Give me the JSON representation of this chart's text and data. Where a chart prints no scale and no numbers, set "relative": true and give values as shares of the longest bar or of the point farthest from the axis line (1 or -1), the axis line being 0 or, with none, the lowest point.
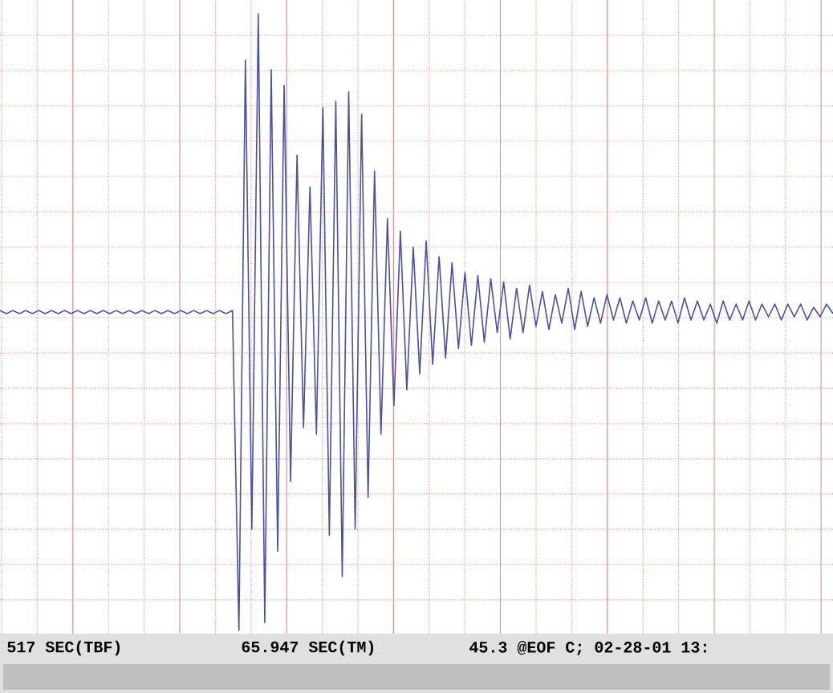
{
  "chart_data": {
    "type": "line",
    "relative": true,
    "grid": true,
    "tick_labels": false,
    "color": "#4a4fa8",
    "categories": [
      null,
      null,
      null,
      null,
      null,
      null,
      null,
      null,
      null,
      null,
      null,
      null,
      null,
      null,
      null,
      null,
      null,
      null,
      null,
      null,
      null,
      null,
      null,
      null,
      null,
      null,
      null,
      null,
      null,
      null,
      null,
      null,
      null,
      null,
      null,
      null,
      null,
      null,
      null,
      null,
      null,
      null,
      null,
      null,
      null,
      null,
      null,
      null,
      null,
      null,
      null,
      null,
      null,
      null,
      null,
      null,
      null,
      null,
      null,
      null,
      null,
      null,
      null,
      null,
      null,
      null,
      null,
      null,
      null,
      null,
      null,
      null,
      null,
      null,
      null,
      null,
      null,
      null,
      null,
      null,
      null,
      null,
      null,
      null,
      null,
      null,
      null,
      null,
      null,
      null,
      null,
      null,
      null,
      null,
      null,
      null,
      null,
      null,
      null,
      null,
      null,
      null,
      null,
      null,
      null,
      null,
      null,
      null,
      null,
      null,
      null,
      null,
      null,
      null,
      null,
      null,
      null,
      null,
      null,
      null,
      null,
      null,
      null,
      null,
      null,
      null,
      null,
      null,
      null,
      null
    ],
    "values": [
      0.01,
      0.0,
      0.01,
      0.0,
      0.01,
      0.0,
      0.01,
      0.0,
      0.01,
      0.0,
      0.01,
      0.0,
      0.01,
      0.0,
      0.01,
      0.0,
      0.01,
      0.0,
      0.01,
      0.0,
      0.01,
      0.0,
      0.01,
      0.0,
      0.01,
      0.0,
      0.01,
      0.0,
      0.01,
      0.0,
      0.01,
      0.0,
      0.01,
      0.0,
      0.01,
      0.0,
      0.01,
      -1.0,
      0.8,
      -0.68,
      0.946,
      -0.975,
      0.77,
      -0.75,
      0.72,
      -0.53,
      0.5,
      -0.36,
      0.4,
      -0.38,
      0.65,
      -0.7,
      0.67,
      -0.83,
      0.7,
      -0.68,
      0.63,
      -0.58,
      0.45,
      -0.38,
      0.3,
      -0.29,
      0.26,
      -0.24,
      0.21,
      -0.19,
      0.23,
      -0.16,
      0.18,
      -0.14,
      0.16,
      -0.11,
      0.13,
      -0.1,
      0.12,
      -0.09,
      0.11,
      -0.06,
      0.1,
      -0.08,
      0.08,
      -0.06,
      0.09,
      -0.04,
      0.07,
      -0.05,
      0.06,
      -0.03,
      0.08,
      -0.05,
      0.07,
      -0.04,
      0.05,
      -0.03,
      0.06,
      -0.02,
      0.05,
      -0.03,
      0.04,
      -0.02,
      0.05,
      -0.03,
      0.04,
      -0.02,
      0.04,
      -0.03,
      0.05,
      -0.02,
      0.04,
      -0.02,
      0.03,
      -0.03,
      0.04,
      -0.02,
      0.03,
      -0.02,
      0.04,
      -0.02,
      0.03,
      -0.01,
      0.03,
      -0.02,
      0.03,
      -0.01,
      0.03,
      -0.02,
      0.02,
      -0.01,
      0.03,
      0.0
    ],
    "annotations": [
      "517 SEC(TBF)",
      "65.947 SEC(TM)",
      "45.3 @EOF C; 02-28-01 13:"
    ]
  }
}
